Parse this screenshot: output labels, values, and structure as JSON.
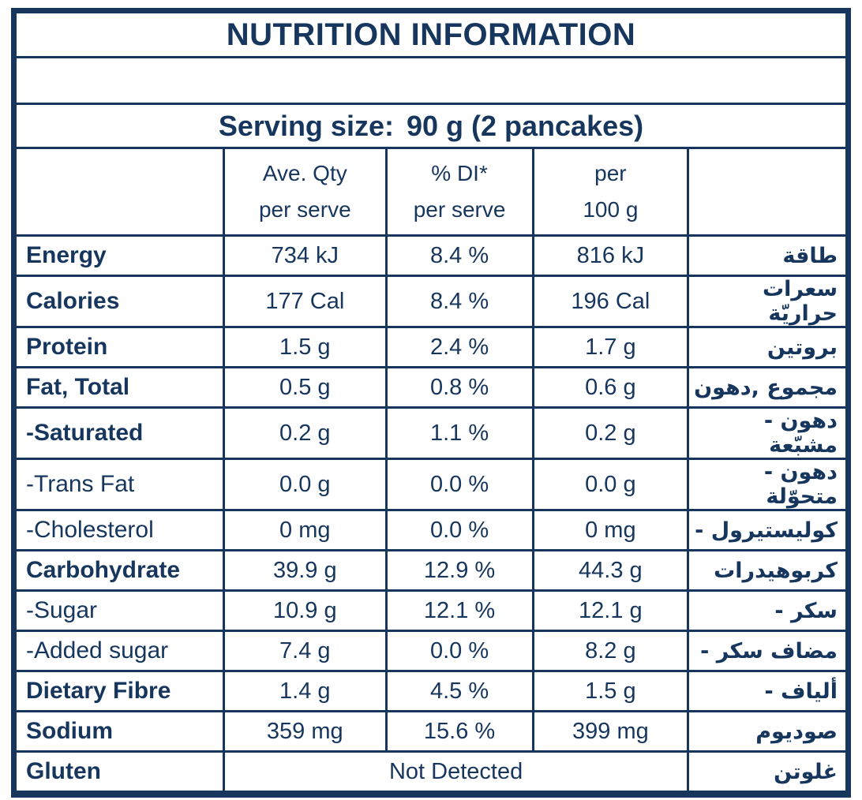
{
  "colors": {
    "navy": "#17365d",
    "background": "#ffffff"
  },
  "header": {
    "title": "NUTRITION INFORMATION"
  },
  "serving": {
    "label": "Serving size:",
    "value": "90 g (2 pancakes)"
  },
  "columns": {
    "ave_qty": "Ave. Qty\nper serve",
    "di": "% DI*\nper serve",
    "per100": "per\n100 g"
  },
  "rows": [
    {
      "en": "Energy",
      "ave": "734 kJ",
      "di": "8.4 %",
      "per100": "816 kJ",
      "ar": "طاقة"
    },
    {
      "en": "Calories",
      "ave": "177 Cal",
      "di": "8.4 %",
      "per100": "196 Cal",
      "ar": "سعرات‎ حراريّة"
    },
    {
      "en": "Protein",
      "ave": "1.5 g",
      "di": "2.4 %",
      "per100": "1.7 g",
      "ar": "بروتين"
    },
    {
      "en": "Fat, Total",
      "ave": "0.5 g",
      "di": "0.8 %",
      "per100": "0.6 g",
      "ar": "دهون,‎ مجموع"
    },
    {
      "en": "-Saturated",
      "ave": "0.2 g",
      "di": "1.1 %",
      "per100": "0.2 g",
      "ar": "- دهون‎ مشبّعة"
    },
    {
      "en": "-Trans Fat",
      "ave": "0.0 g",
      "di": "0.0 %",
      "per100": "0.0 g",
      "ar": "- دهون‎ متحوّلة"
    },
    {
      "en": "-Cholesterol",
      "ave": "0 mg",
      "di": "0.0 %",
      "per100": "0 mg",
      "ar": "- كوليستيرول"
    },
    {
      "en": "Carbohydrate",
      "ave": "39.9 g",
      "di": "12.9 %",
      "per100": "44.3 g",
      "ar": "كربوهيدرات"
    },
    {
      "en": "-Sugar",
      "ave": "10.9 g",
      "di": "12.1 %",
      "per100": "12.1 g",
      "ar": "- سكر"
    },
    {
      "en": "-Added sugar",
      "ave": "7.4 g",
      "di": "0.0 %",
      "per100": "8.2 g",
      "ar": "- سكر‎ مضاف"
    },
    {
      "en": "Dietary Fibre",
      "ave": "1.4 g",
      "di": "4.5 %",
      "per100": "1.5 g",
      "ar": "- ألياف"
    },
    {
      "en": "Sodium",
      "ave": "359 mg",
      "di": "15.6 %",
      "per100": "399 mg",
      "ar": "صوديوم"
    }
  ],
  "gluten": {
    "en": "Gluten",
    "value": "Not Detected",
    "ar": "غلوتن"
  }
}
